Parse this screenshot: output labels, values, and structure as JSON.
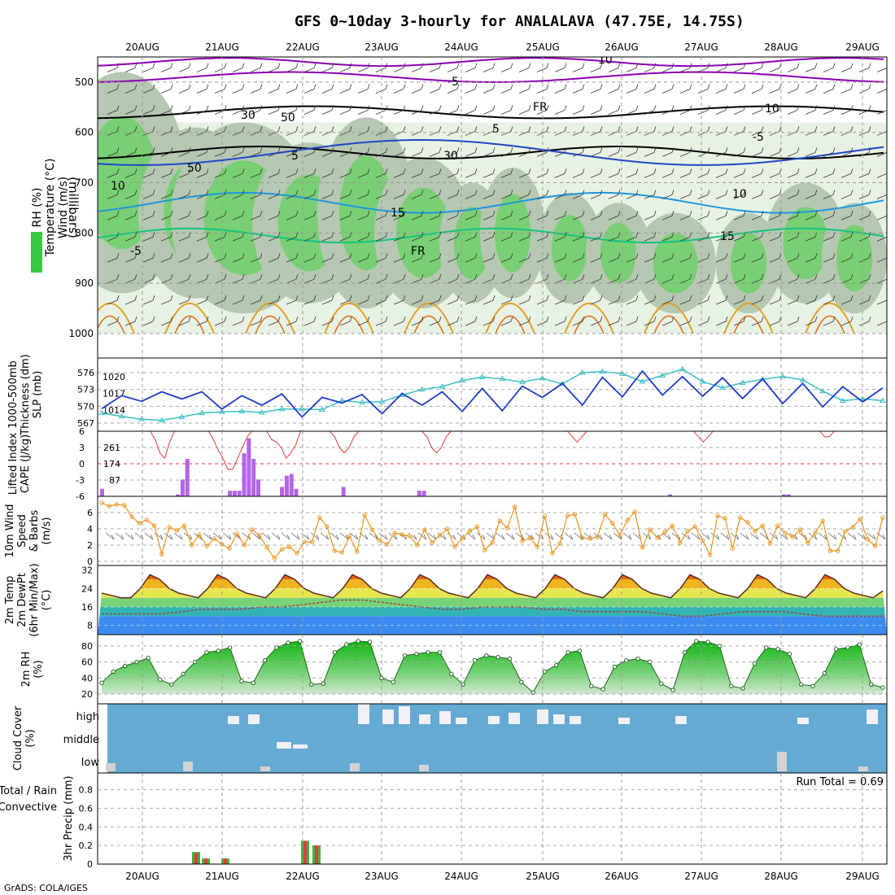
{
  "title": "GFS 0~10day 3-hourly for ANALALAVA (47.75E, 14.75S)",
  "credit": "GrADS: COLA/IGES",
  "colors": {
    "wind_contour": "#8c00b4",
    "temp_blue": "#1e46c8",
    "temp_cyan": "#1e96dc",
    "temp_green": "#14c382",
    "temp_orange": "#e1a024",
    "rh_green": "#3cc846",
    "slp": "#1e3cc8",
    "thickness": "#3cbec3",
    "cape": "#b464e6",
    "lifted": "#e13c3c",
    "wind10": "#e6961e",
    "cloud_bg": "#64aad2",
    "precip_total": "#3cb43c",
    "precip_conv": "#e13c3c"
  },
  "chart_data": {
    "type": "meteogram",
    "x_labels": [
      "20AUG",
      "21AUG",
      "22AUG",
      "23AUG",
      "24AUG",
      "25AUG",
      "26AUG",
      "27AUG",
      "28AUG",
      "29AUG"
    ],
    "panels": [
      {
        "id": "upper_air",
        "type": "heatmap",
        "ylabel_parts": [
          "RH (%)",
          "Temperature (°C)",
          "Wind (m/s)"
        ],
        "ylabel2": "(millibars)",
        "y_ticks": [
          500,
          600,
          700,
          800,
          900,
          1000
        ],
        "ylim": [
          450,
          1000
        ],
        "contour_labels": [
          "10",
          "-5",
          "FR",
          "5",
          "10",
          "15",
          "-5",
          "FR",
          "-5",
          "5",
          "10",
          "15",
          "30",
          "50",
          "30",
          "50",
          "10"
        ]
      },
      {
        "id": "slp_thickness",
        "type": "line",
        "ylabel_parts": [
          "1000-500mb",
          "Thickness (dm)",
          "SLP (mb)"
        ],
        "left_ticks": [
          567,
          570,
          573,
          576
        ],
        "right_ticks": [
          1014,
          1017,
          1020
        ],
        "series": [
          {
            "name": "SLP (mb)",
            "values": [
              1014.3,
              1016.6,
              1015.6,
              1017.3,
              1016.0,
              1017.3,
              1014.2,
              1016.6,
              1014.9,
              1016.9,
              1012.8,
              1016.3,
              1015.3,
              1016.8,
              1013.4,
              1017.0,
              1014.9,
              1017.3,
              1013.8,
              1017.9,
              1013.9,
              1018.3,
              1016.3,
              1018.8,
              1014.9,
              1019.9,
              1016.4,
              1021.0,
              1016.7,
              1020.0,
              1016.5,
              1019.8,
              1016.1,
              1019.6,
              1015.2,
              1018.8,
              1014.6,
              1018.2,
              1015.5,
              1018.0
            ]
          },
          {
            "name": "1000-500mb Thickness (dm)",
            "values": [
              568.8,
              568.2,
              567.7,
              567.5,
              568.1,
              568.8,
              569.0,
              569.1,
              568.9,
              569.5,
              569.5,
              569.4,
              571.0,
              570.7,
              570.8,
              572.0,
              573.0,
              573.5,
              574.6,
              575.2,
              574.9,
              574.3,
              575.0,
              574.0,
              576.0,
              576.2,
              575.8,
              574.4,
              575.5,
              576.6,
              574.4,
              573.3,
              574.2,
              574.8,
              575.3,
              574.7,
              572.7,
              571.0,
              571.3,
              571.0
            ]
          }
        ]
      },
      {
        "id": "cape_li",
        "type": "bar",
        "ylabel_parts": [
          "Lifted Index",
          "CAPE (J/kg)"
        ],
        "left_ticks": [
          "6",
          "3",
          "0",
          "-3",
          "-6"
        ],
        "right_ticks": [
          87,
          174,
          261
        ],
        "series": [
          {
            "name": "CAPE (J/kg)",
            "values": [
              40,
              0,
              0,
              0,
              0,
              0,
              0,
              0,
              0,
              0,
              0,
              0,
              0,
              0,
              0,
              0,
              10,
              90,
              200,
              0,
              0,
              0,
              0,
              0,
              0,
              0,
              0,
              30,
              30,
              30,
              230,
              310,
              200,
              90,
              0,
              0,
              0,
              0,
              50,
              110,
              120,
              40,
              0,
              0,
              0,
              0,
              0,
              0,
              0,
              0,
              0,
              50,
              0,
              0,
              0,
              0,
              0,
              0,
              0,
              0,
              0,
              0,
              0,
              0,
              0,
              0,
              0,
              30,
              30,
              0,
              0,
              0,
              0,
              0,
              0,
              0,
              0,
              0,
              0,
              0,
              0,
              0,
              0,
              0,
              0,
              0,
              0,
              0,
              0,
              0,
              0,
              0,
              0,
              0,
              0,
              0,
              0,
              0,
              0,
              0,
              0,
              0,
              0,
              0,
              0,
              0,
              0,
              0,
              0,
              0,
              0,
              0,
              0,
              0,
              0,
              0,
              0,
              0,
              0,
              0,
              10,
              0,
              0,
              0,
              0,
              0,
              0,
              0,
              0,
              0,
              0,
              0,
              0,
              0,
              0,
              0,
              0,
              0,
              0,
              0,
              0,
              0,
              0,
              0,
              10,
              10,
              0,
              0,
              0,
              0,
              0,
              0,
              0,
              0,
              0,
              0,
              0,
              0,
              0,
              0,
              0,
              0,
              0,
              0,
              0,
              0
            ]
          },
          {
            "name": "Lifted Index",
            "values": [
              6,
              6,
              6,
              6,
              6,
              6,
              6,
              6,
              6,
              6,
              6,
              4.5,
              2,
              1,
              4,
              6,
              6,
              6,
              6,
              6,
              6,
              6,
              6,
              4.5,
              2.5,
              1,
              -1,
              -1,
              1,
              3,
              5,
              6,
              6,
              6,
              6,
              4.5,
              4,
              3,
              1,
              2,
              3.5,
              6,
              6,
              6,
              6,
              6,
              6,
              6,
              5,
              3,
              2,
              3,
              5,
              6,
              6,
              6,
              6,
              6,
              6,
              6,
              6,
              6,
              6,
              6,
              6,
              6,
              6,
              5,
              3,
              2,
              3,
              5,
              6,
              6,
              6,
              6,
              6,
              6,
              6,
              6,
              6,
              6,
              6,
              6,
              6,
              6,
              6,
              6,
              6,
              6,
              6,
              6,
              6,
              6,
              6,
              6,
              6,
              5,
              4,
              5,
              6,
              6,
              6,
              6,
              6,
              6,
              6,
              6,
              6,
              6,
              6,
              6,
              6,
              6,
              6,
              6,
              6,
              6,
              6,
              6,
              6,
              6,
              6,
              5,
              4,
              5,
              6,
              6,
              6,
              6,
              6,
              6,
              6,
              6,
              6,
              6,
              6,
              6,
              6,
              6,
              6,
              6,
              6,
              6,
              6,
              6,
              6,
              6,
              6,
              5,
              5,
              6,
              6,
              6,
              6,
              6,
              6,
              6,
              6,
              6,
              6,
              6
            ]
          }
        ]
      },
      {
        "id": "wind10",
        "type": "line",
        "ylabel_parts": [
          "10m Wind",
          "Speed",
          "& Barbs",
          "(m/s)"
        ],
        "left_ticks": [
          0,
          2,
          4,
          6
        ],
        "series": [
          {
            "name": "10m Wind Speed",
            "values": [
              7.2,
              6.8,
              7.0,
              6.9,
              5.5,
              4.7,
              5.1,
              4.4,
              0.9,
              4.2,
              3.8,
              4.4,
              2.0,
              3.3,
              1.9,
              2.8,
              2.1,
              1.6,
              3.4,
              2.0,
              3.9,
              3.2,
              1.7,
              0.4,
              1.5,
              1.8,
              1.0,
              2.4,
              2.4,
              5.4,
              4.3,
              1.3,
              1.1,
              3.1,
              1.2,
              5.7,
              3.9,
              2.6,
              2.1,
              3.5,
              3.3,
              3.1,
              2.0,
              3.9,
              2.3,
              3.2,
              4.0,
              1.8,
              2.8,
              3.7,
              4.3,
              1.4,
              2.3,
              5.0,
              4.1,
              6.7,
              2.5,
              2.9,
              1.8,
              5.6,
              1.0,
              2.2,
              5.6,
              5.8,
              2.9,
              2.8,
              3.0,
              5.8,
              4.7,
              3.2,
              5.1,
              6.1,
              1.7,
              3.9,
              2.9,
              3.6,
              4.4,
              2.3,
              3.7,
              4.3,
              2.6,
              0.8,
              5.6,
              5.3,
              1.6,
              5.4,
              4.8,
              3.7,
              4.4,
              2.2,
              4.4,
              3.5,
              3.0,
              3.9,
              2.3,
              3.5,
              5.0,
              1.3,
              1.3,
              3.7,
              4.2,
              5.2,
              2.7,
              1.9,
              5.4
            ]
          }
        ]
      },
      {
        "id": "temp2m",
        "type": "area",
        "ylabel_parts": [
          "2m Temp",
          "2m DewPt",
          "(6hr Min/Max)",
          "(°C)"
        ],
        "left_ticks": [
          8,
          16,
          24,
          32
        ],
        "series": [
          {
            "name": "2m Temp",
            "values": [
              22,
              21,
              20,
              20,
              24,
              30,
              28,
              24,
              22,
              21,
              20,
              24,
              30,
              28,
              24,
              22,
              21,
              20,
              24,
              30,
              28,
              24,
              22,
              21,
              20,
              24,
              30,
              28,
              24,
              22,
              21,
              20,
              24,
              30,
              28,
              24,
              22,
              21,
              20,
              24,
              30,
              28,
              24,
              22,
              21,
              20,
              24,
              30,
              28,
              24,
              22,
              21,
              20,
              24,
              30,
              28,
              24,
              22,
              21,
              20,
              24,
              30,
              28,
              24,
              22,
              21,
              20,
              24,
              30,
              28,
              24,
              22,
              21,
              20,
              24,
              30,
              28,
              24,
              22,
              21,
              20,
              23
            ]
          },
          {
            "name": "2m DewPt",
            "values": [
              13,
              13,
              13,
              13,
              14,
              15,
              15,
              15,
              16,
              16,
              17,
              18,
              19,
              19,
              18,
              17,
              16,
              15,
              15,
              16,
              16,
              16,
              15,
              15,
              14,
              14,
              14,
              14,
              13,
              12,
              12,
              13,
              14,
              14,
              14,
              13,
              12,
              12,
              12,
              12
            ]
          }
        ]
      },
      {
        "id": "rh2m",
        "type": "area",
        "ylabel_parts": [
          "2m RH",
          "(%)"
        ],
        "left_ticks": [
          20,
          40,
          60,
          80
        ],
        "series": [
          {
            "name": "2m RH",
            "values": [
              34,
              48,
              55,
              60,
              65,
              38,
              32,
              45,
              60,
              72,
              74,
              78,
              36,
              34,
              62,
              78,
              84,
              86,
              32,
              33,
              72,
              82,
              86,
              85,
              40,
              35,
              68,
              70,
              72,
              72,
              45,
              32,
              62,
              68,
              66,
              64,
              35,
              22,
              48,
              56,
              72,
              74,
              30,
              26,
              54,
              62,
              64,
              60,
              33,
              25,
              72,
              86,
              85,
              80,
              30,
              27,
              58,
              78,
              76,
              70,
              32,
              30,
              46,
              76,
              78,
              82,
              32,
              28
            ]
          }
        ]
      },
      {
        "id": "cloud",
        "type": "bar",
        "ylabel_parts": [
          "Cloud Cover",
          "(%)"
        ],
        "levels": [
          "high",
          "middle",
          "low"
        ]
      },
      {
        "id": "precip",
        "type": "bar",
        "ylabel_parts": [
          "Total / Rain",
          "Convective",
          "3hr Precip (mm)"
        ],
        "left_ticks": [
          0,
          0.2,
          0.4,
          0.6,
          0.8
        ],
        "annotation": "Run Total = 0.69",
        "series": [
          {
            "name": "Total",
            "values": [
              0.13,
              0.06,
              0.06,
              0.25,
              0.2
            ]
          },
          {
            "name": "Convective",
            "values": [
              0.12,
              0.06,
              0.06,
              0.25,
              0.2
            ]
          }
        ]
      }
    ]
  }
}
